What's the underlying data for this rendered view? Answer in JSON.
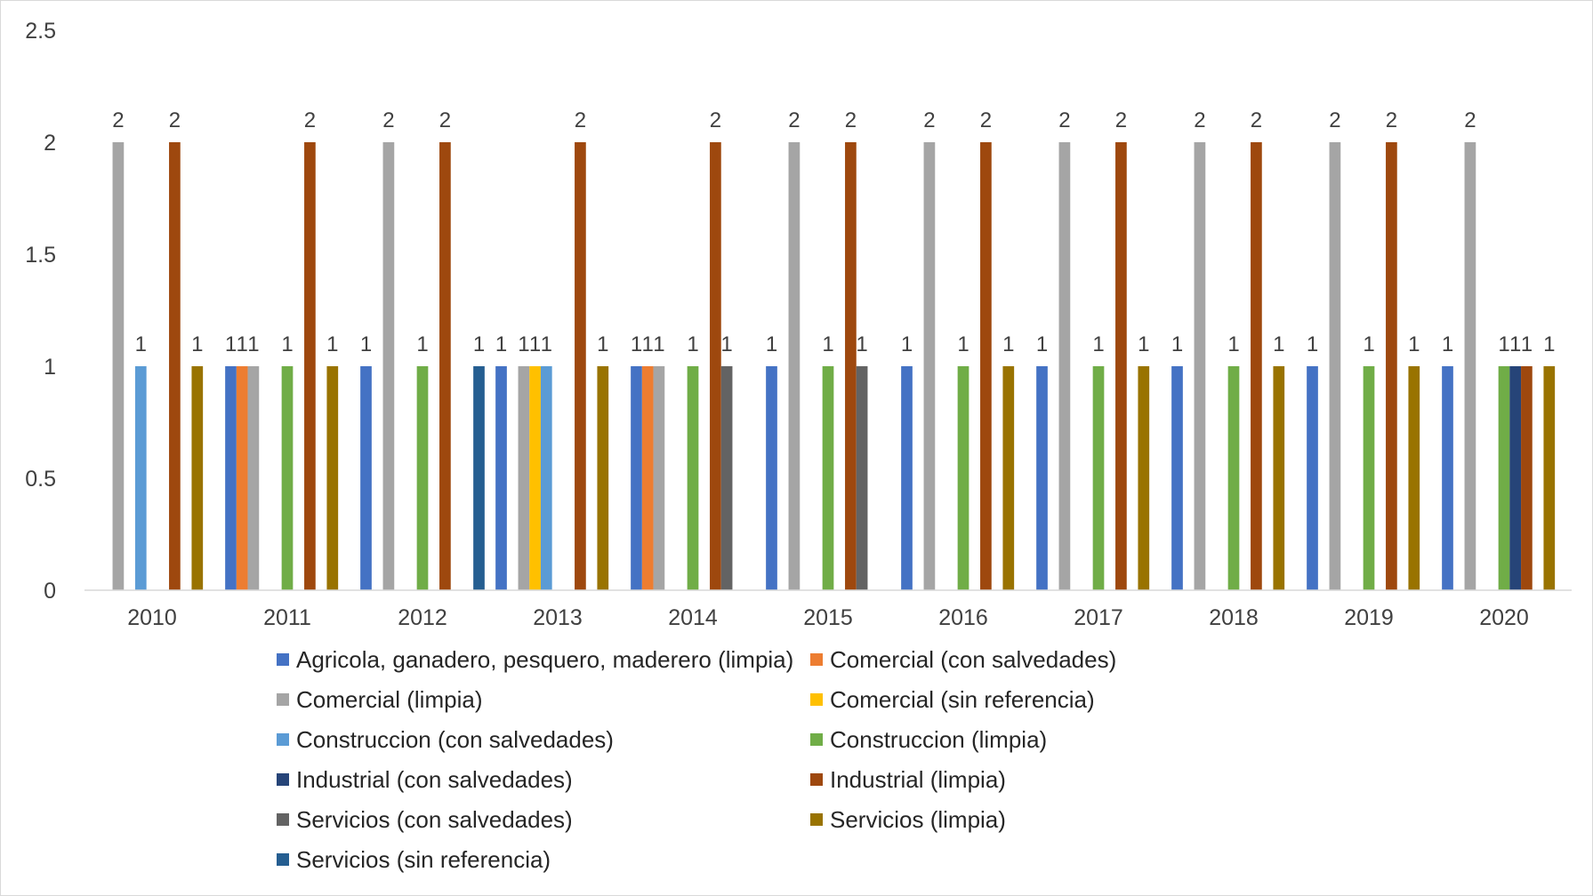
{
  "chart_data": {
    "type": "bar",
    "title": "",
    "xlabel": "",
    "ylabel": "",
    "ylim": [
      0,
      2.5
    ],
    "yticks": [
      "0",
      "0.5",
      "1",
      "1.5",
      "2",
      "2.5"
    ],
    "grid": false,
    "legend_position": "bottom",
    "categories": [
      "2010",
      "2011",
      "2012",
      "2013",
      "2014",
      "2015",
      "2016",
      "2017",
      "2018",
      "2019",
      "2020"
    ],
    "series": [
      {
        "name": "Agricola, ganadero, pesquero, maderero (limpia)",
        "color": "#4472C4",
        "values": [
          null,
          1,
          1,
          1,
          1,
          1,
          1,
          1,
          1,
          1,
          1
        ]
      },
      {
        "name": "Comercial (con salvedades)",
        "color": "#ED7D31",
        "values": [
          null,
          1,
          null,
          null,
          1,
          null,
          null,
          null,
          null,
          null,
          null
        ]
      },
      {
        "name": "Comercial (limpia)",
        "color": "#A5A5A5",
        "values": [
          2,
          1,
          2,
          1,
          1,
          2,
          2,
          2,
          2,
          2,
          2
        ]
      },
      {
        "name": "Comercial (sin referencia)",
        "color": "#FFC000",
        "values": [
          null,
          null,
          null,
          1,
          null,
          null,
          null,
          null,
          null,
          null,
          null
        ]
      },
      {
        "name": "Construccion (con salvedades)",
        "color": "#5B9BD5",
        "values": [
          1,
          null,
          null,
          1,
          null,
          null,
          null,
          null,
          null,
          null,
          null
        ]
      },
      {
        "name": "Construccion (limpia)",
        "color": "#70AD47",
        "values": [
          null,
          1,
          1,
          null,
          1,
          1,
          1,
          1,
          1,
          1,
          1
        ]
      },
      {
        "name": "Industrial (con salvedades)",
        "color": "#264478",
        "values": [
          null,
          null,
          null,
          null,
          null,
          null,
          null,
          null,
          null,
          null,
          1
        ]
      },
      {
        "name": "Industrial (limpia)",
        "color": "#9E480E",
        "values": [
          2,
          2,
          2,
          2,
          2,
          2,
          2,
          2,
          2,
          2,
          1
        ]
      },
      {
        "name": "Servicios (con salvedades)",
        "color": "#636363",
        "values": [
          null,
          null,
          null,
          null,
          1,
          1,
          null,
          null,
          null,
          null,
          null
        ]
      },
      {
        "name": "Servicios (limpia)",
        "color": "#997300",
        "values": [
          1,
          1,
          null,
          1,
          null,
          null,
          1,
          1,
          1,
          1,
          1
        ]
      },
      {
        "name": "Servicios (sin referencia)",
        "color": "#255E91",
        "values": [
          null,
          null,
          1,
          null,
          null,
          null,
          null,
          null,
          null,
          null,
          null
        ]
      }
    ]
  }
}
